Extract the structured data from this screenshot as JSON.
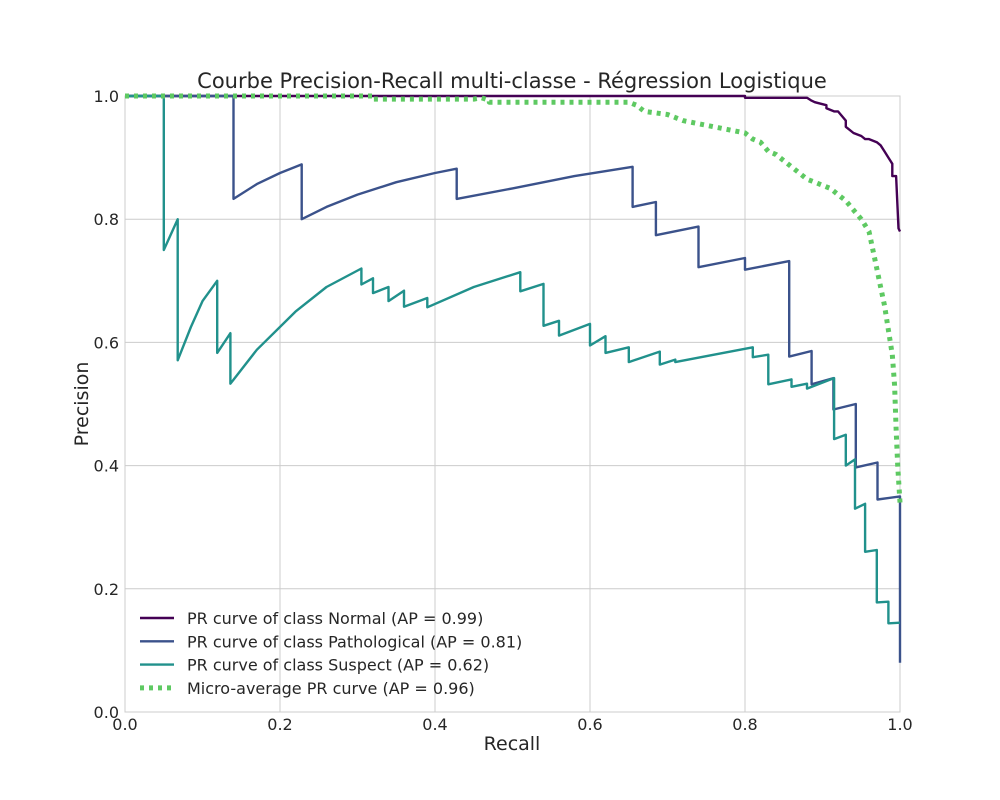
{
  "chart_data": {
    "type": "line",
    "title": "Courbe Precision-Recall multi-classe - Régression Logistique",
    "xlabel": "Recall",
    "ylabel": "Precision",
    "xlim": [
      0.0,
      1.0
    ],
    "ylim": [
      0.0,
      1.0
    ],
    "xticks": [
      "0.0",
      "0.2",
      "0.4",
      "0.6",
      "0.8",
      "1.0"
    ],
    "yticks": [
      "0.0",
      "0.2",
      "0.4",
      "0.6",
      "0.8",
      "1.0"
    ],
    "grid": true,
    "legend_position": "lower-left",
    "series": [
      {
        "name": "PR curve of class Normal (AP = 0.99)",
        "color": "#440154",
        "style": "solid",
        "x": [
          0.0,
          0.8,
          0.8,
          0.88,
          0.885,
          0.89,
          0.905,
          0.905,
          0.915,
          0.92,
          0.93,
          0.93,
          0.94,
          0.95,
          0.955,
          0.96,
          0.97,
          0.975,
          0.98,
          0.985,
          0.99,
          0.99,
          0.995,
          0.998,
          1.0
        ],
        "y": [
          1.0,
          1.0,
          0.997,
          0.997,
          0.993,
          0.99,
          0.985,
          0.98,
          0.975,
          0.975,
          0.96,
          0.95,
          0.94,
          0.935,
          0.93,
          0.93,
          0.925,
          0.92,
          0.91,
          0.9,
          0.89,
          0.87,
          0.87,
          0.785,
          0.78
        ]
      },
      {
        "name": "PR curve of class Pathological (AP = 0.81)",
        "color": "#3b528b",
        "style": "solid",
        "x": [
          0.0,
          0.14,
          0.14,
          0.17,
          0.2,
          0.228,
          0.228,
          0.26,
          0.3,
          0.35,
          0.4,
          0.428,
          0.428,
          0.5,
          0.58,
          0.655,
          0.655,
          0.685,
          0.685,
          0.74,
          0.74,
          0.8,
          0.8,
          0.857,
          0.857,
          0.886,
          0.886,
          0.914,
          0.914,
          0.943,
          0.943,
          0.971,
          0.971,
          1.0,
          1.0
        ],
        "y": [
          1.0,
          1.0,
          0.833,
          0.857,
          0.875,
          0.889,
          0.8,
          0.82,
          0.84,
          0.86,
          0.875,
          0.882,
          0.833,
          0.85,
          0.87,
          0.885,
          0.82,
          0.828,
          0.774,
          0.788,
          0.722,
          0.737,
          0.718,
          0.732,
          0.577,
          0.586,
          0.532,
          0.542,
          0.491,
          0.5,
          0.397,
          0.405,
          0.345,
          0.35,
          0.08
        ]
      },
      {
        "name": "PR curve of class Suspect (AP = 0.62)",
        "color": "#21918c",
        "style": "solid",
        "x": [
          0.0,
          0.05,
          0.05,
          0.068,
          0.068,
          0.085,
          0.1,
          0.119,
          0.119,
          0.136,
          0.136,
          0.17,
          0.22,
          0.26,
          0.305,
          0.305,
          0.32,
          0.32,
          0.34,
          0.34,
          0.36,
          0.36,
          0.39,
          0.39,
          0.45,
          0.51,
          0.51,
          0.54,
          0.54,
          0.56,
          0.56,
          0.6,
          0.6,
          0.62,
          0.62,
          0.65,
          0.65,
          0.69,
          0.69,
          0.71,
          0.71,
          0.76,
          0.81,
          0.81,
          0.83,
          0.83,
          0.86,
          0.86,
          0.88,
          0.88,
          0.915,
          0.915,
          0.93,
          0.93,
          0.942,
          0.942,
          0.955,
          0.955,
          0.97,
          0.97,
          0.985,
          0.985,
          1.0
        ],
        "y": [
          1.0,
          1.0,
          0.75,
          0.8,
          0.571,
          0.625,
          0.667,
          0.7,
          0.583,
          0.615,
          0.533,
          0.588,
          0.65,
          0.69,
          0.72,
          0.694,
          0.704,
          0.68,
          0.69,
          0.667,
          0.684,
          0.658,
          0.672,
          0.657,
          0.69,
          0.714,
          0.683,
          0.695,
          0.627,
          0.635,
          0.611,
          0.63,
          0.595,
          0.61,
          0.583,
          0.592,
          0.568,
          0.585,
          0.564,
          0.572,
          0.568,
          0.58,
          0.592,
          0.576,
          0.58,
          0.532,
          0.54,
          0.528,
          0.533,
          0.525,
          0.542,
          0.443,
          0.45,
          0.4,
          0.41,
          0.33,
          0.338,
          0.26,
          0.263,
          0.178,
          0.179,
          0.144,
          0.145
        ]
      },
      {
        "name": "Micro-average PR curve (AP = 0.96)",
        "color": "#5ec962",
        "style": "dotted",
        "x": [
          0.0,
          0.32,
          0.32,
          0.45,
          0.46,
          0.47,
          0.47,
          0.65,
          0.66,
          0.67,
          0.7,
          0.72,
          0.74,
          0.76,
          0.78,
          0.8,
          0.81,
          0.82,
          0.83,
          0.84,
          0.85,
          0.86,
          0.87,
          0.88,
          0.89,
          0.9,
          0.91,
          0.92,
          0.93,
          0.94,
          0.95,
          0.96,
          0.965,
          0.97,
          0.975,
          0.98,
          0.985,
          0.99,
          0.993,
          0.995,
          0.997,
          1.0
        ],
        "y": [
          1.0,
          1.0,
          0.995,
          0.995,
          0.997,
          0.993,
          0.99,
          0.99,
          0.985,
          0.975,
          0.97,
          0.96,
          0.955,
          0.95,
          0.945,
          0.94,
          0.93,
          0.925,
          0.91,
          0.905,
          0.895,
          0.885,
          0.875,
          0.865,
          0.86,
          0.855,
          0.85,
          0.84,
          0.83,
          0.815,
          0.8,
          0.78,
          0.75,
          0.72,
          0.69,
          0.66,
          0.62,
          0.58,
          0.53,
          0.46,
          0.4,
          0.34
        ]
      }
    ]
  }
}
